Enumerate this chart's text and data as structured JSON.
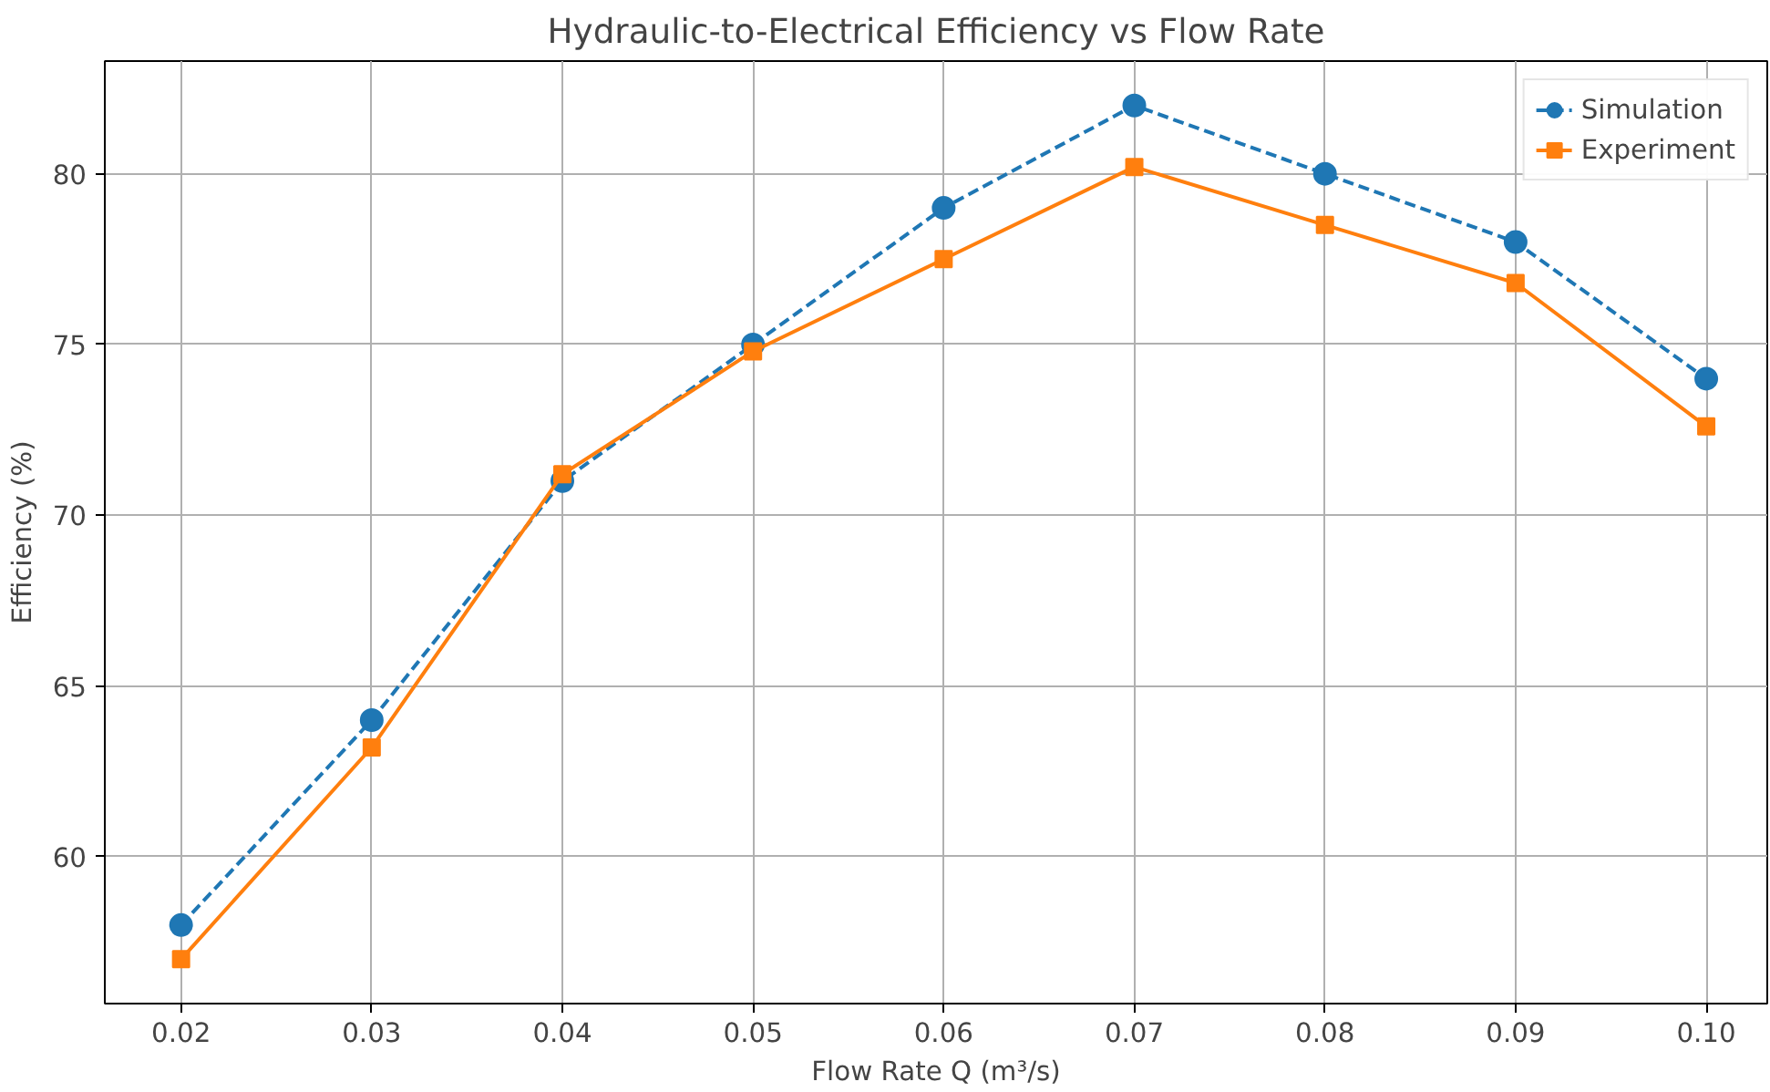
{
  "chart_data": {
    "type": "line",
    "title": "Hydraulic-to-Electrical Efficiency vs Flow Rate",
    "xlabel": "Flow Rate Q (m³/s)",
    "ylabel": "Efficiency (%)",
    "x": [
      0.02,
      0.03,
      0.04,
      0.05,
      0.06,
      0.07,
      0.08,
      0.09,
      0.1
    ],
    "series": [
      {
        "name": "Simulation",
        "color": "#1f77b4",
        "marker": "circle",
        "line_style": "dashed",
        "values": [
          58,
          64,
          71,
          75,
          79,
          82,
          80,
          78,
          74
        ]
      },
      {
        "name": "Experiment",
        "color": "#ff7f0e",
        "marker": "square",
        "line_style": "solid",
        "values": [
          57.0,
          63.2,
          71.2,
          74.8,
          77.5,
          80.2,
          78.5,
          76.8,
          72.6
        ]
      }
    ],
    "xlim": [
      0.016,
      0.1032
    ],
    "ylim": [
      55.7,
      83.3
    ],
    "xticks": [
      0.02,
      0.03,
      0.04,
      0.05,
      0.06,
      0.07,
      0.08,
      0.09,
      {
        "value": 0.1,
        "label": "0.10"
      }
    ],
    "yticks": [
      60,
      65,
      70,
      75,
      80
    ],
    "grid": true,
    "legend": "top right"
  }
}
